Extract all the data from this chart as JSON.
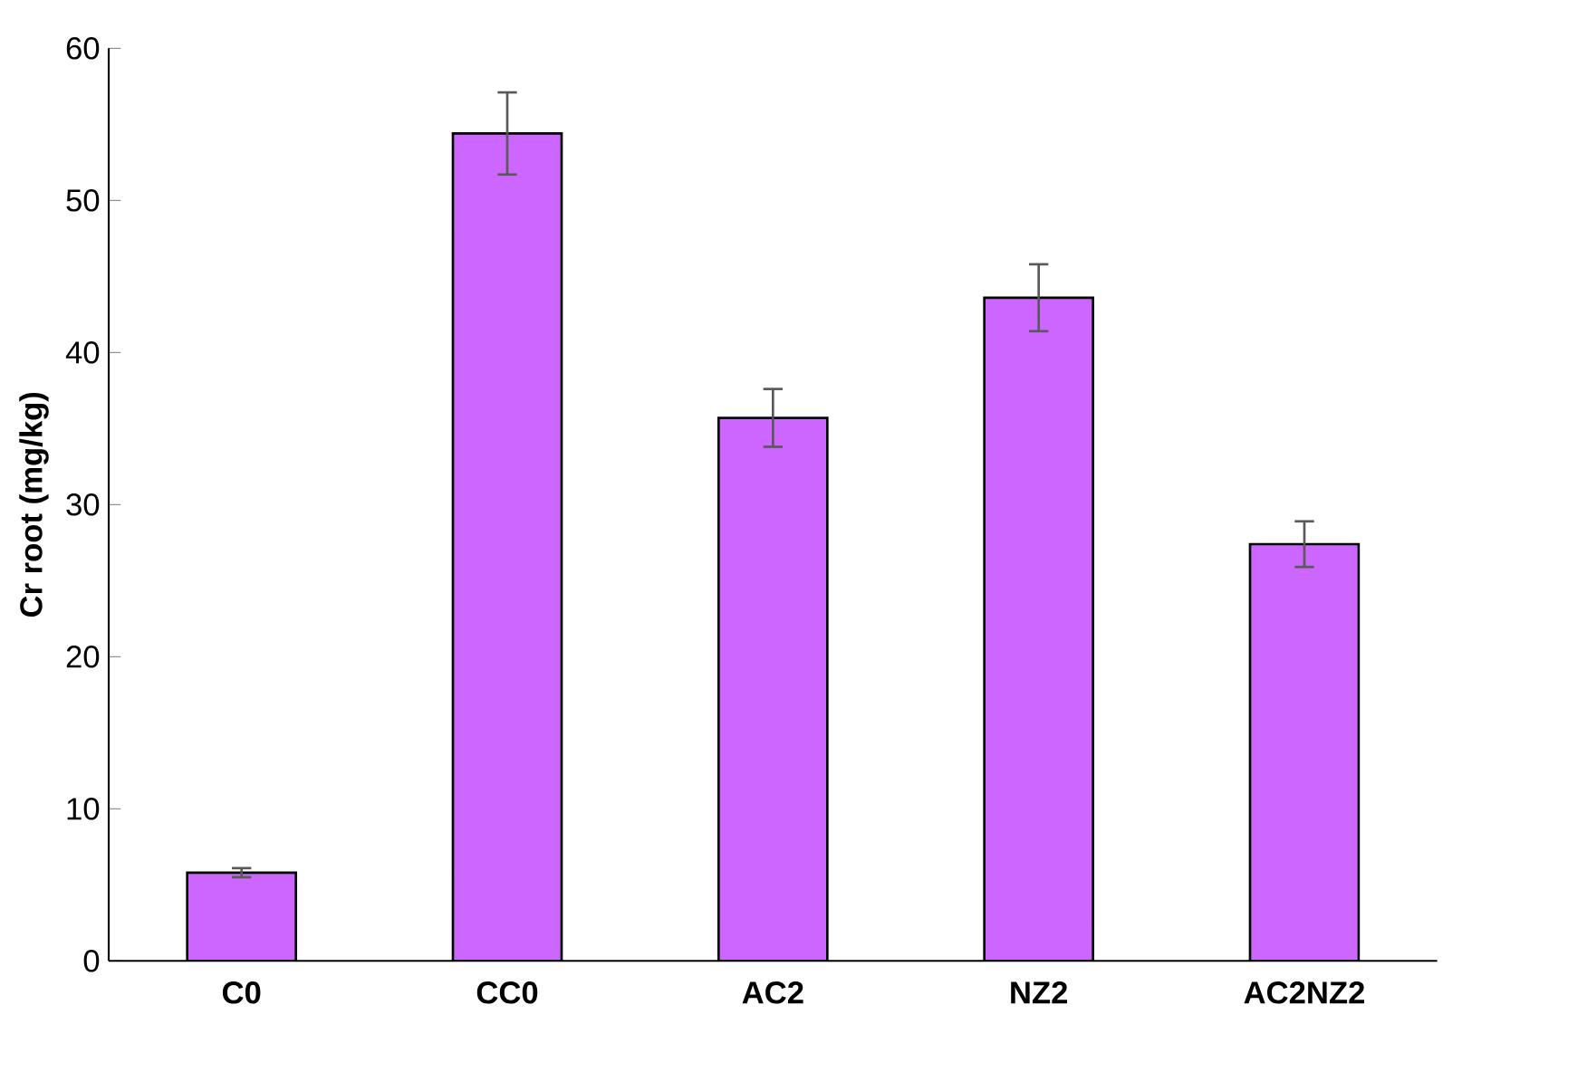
{
  "chart_data": {
    "type": "bar",
    "ylabel": "Cr root (mg/kg)",
    "categories": [
      "C0",
      "CC0",
      "AC2",
      "NZ2",
      "AC2NZ2"
    ],
    "values": [
      5.8,
      54.4,
      35.7,
      43.6,
      27.4
    ],
    "errors": [
      0.3,
      2.7,
      1.9,
      2.2,
      1.5
    ],
    "color": "#cc66ff",
    "ylim": [
      0,
      60
    ],
    "yticks": [
      0,
      10,
      20,
      30,
      40,
      50,
      60
    ],
    "grid": false
  }
}
